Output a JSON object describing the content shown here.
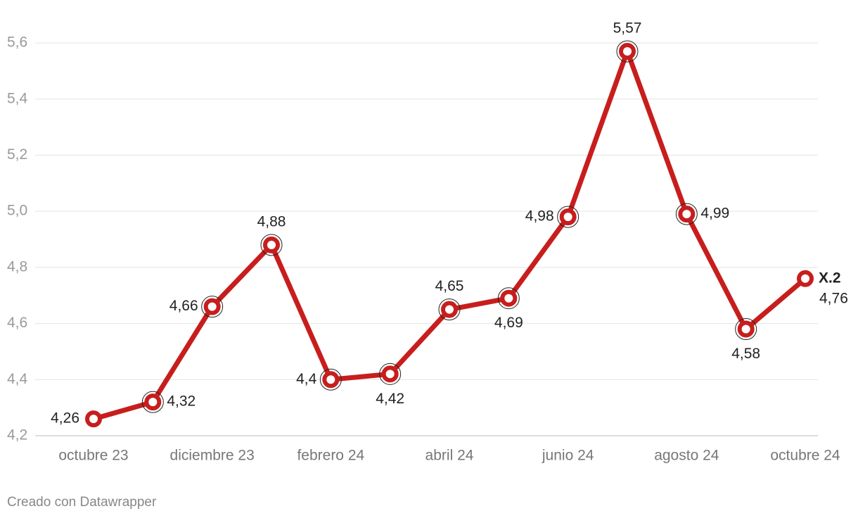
{
  "chart_data": {
    "type": "line",
    "categories": [
      "octubre 23",
      null,
      "diciembre 23",
      null,
      "febrero 24",
      null,
      "abril 24",
      null,
      "junio 24",
      null,
      "agosto 24",
      null,
      "octubre 24"
    ],
    "series": [
      {
        "name": "X.2",
        "color": "#c71e1d",
        "values": [
          4.26,
          4.32,
          4.66,
          4.88,
          4.4,
          4.42,
          4.65,
          4.69,
          4.98,
          5.57,
          4.99,
          4.58,
          4.76
        ],
        "value_labels": [
          "4,26",
          "4,32",
          "4,66",
          "4,88",
          "4,4",
          "4,42",
          "4,65",
          "4,69",
          "4,98",
          "5,57",
          "4,99",
          "4,58",
          "4,76"
        ]
      }
    ],
    "ylim": [
      4.2,
      5.6
    ],
    "yticks": [
      {
        "value": 4.2,
        "label": "4,2"
      },
      {
        "value": 4.4,
        "label": "4,4"
      },
      {
        "value": 4.6,
        "label": "4,6"
      },
      {
        "value": 4.8,
        "label": "4,8"
      },
      {
        "value": 5.0,
        "label": "5,0"
      },
      {
        "value": 5.2,
        "label": "5,2"
      },
      {
        "value": 5.4,
        "label": "5,4"
      },
      {
        "value": 5.6,
        "label": "5,6"
      }
    ],
    "grid": true,
    "footer": "Creado con Datawrapper"
  }
}
